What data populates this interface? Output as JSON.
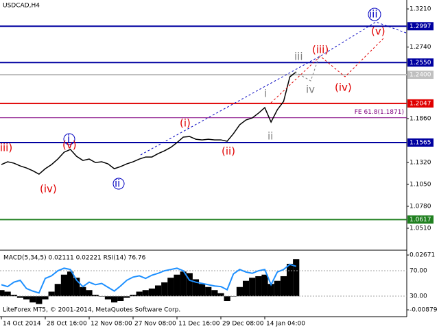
{
  "chart_data": [
    {
      "type": "line",
      "title": "USDCAD,H4",
      "footer": "LiteForex MT5, © 2001-2014, MetaQuotes Software Corp.",
      "categories": [
        "14 Oct 2014",
        null,
        null,
        null,
        null,
        null,
        null,
        "28 Oct 16:00",
        null,
        null,
        null,
        null,
        null,
        null,
        "12 Nov 08:00",
        null,
        null,
        null,
        null,
        null,
        null,
        "27 Nov 08:00",
        null,
        null,
        null,
        null,
        null,
        null,
        "11 Dec 16:00",
        null,
        null,
        null,
        null,
        null,
        null,
        "29 Dec 08:00",
        null,
        null,
        null,
        null,
        null,
        null,
        "14 Jan 04:00",
        null,
        null,
        null,
        null,
        null
      ],
      "values": [
        1.1294,
        1.1328,
        1.1311,
        1.1277,
        1.1252,
        1.1218,
        1.1176,
        1.1243,
        1.1294,
        1.1362,
        1.1446,
        1.148,
        1.1395,
        1.1345,
        1.1362,
        1.1319,
        1.1328,
        1.1303,
        1.1243,
        1.1269,
        1.1303,
        1.1328,
        1.1362,
        1.1387,
        1.1387,
        1.1429,
        1.1463,
        1.1505,
        1.1564,
        1.1632,
        1.164,
        1.1606,
        1.1598,
        1.1606,
        1.1598,
        1.1598,
        1.1581,
        1.1674,
        1.1784,
        1.1843,
        1.1868,
        1.1927,
        1.1995,
        1.1817,
        1.1969,
        1.2071,
        1.2374,
        1.2434
      ],
      "color": "#000000",
      "ylim": [
        1.024,
        1.332
      ],
      "yticks": [
        {
          "value": 1.321,
          "label": "1.3210"
        },
        {
          "value": 1.274,
          "label": "1.2740"
        },
        {
          "value": 1.186,
          "label": "1.1860"
        },
        {
          "value": 1.132,
          "label": "1.1320"
        },
        {
          "value": 1.105,
          "label": "1.1050"
        },
        {
          "value": 1.078,
          "label": "1.0780"
        },
        {
          "value": 1.051,
          "label": "1.0510"
        }
      ],
      "levels": [
        {
          "value": 1.2997,
          "label": "1.2997",
          "color": "#0000a0"
        },
        {
          "value": 1.255,
          "label": "1.2550",
          "color": "#0000a0"
        },
        {
          "value": 1.24,
          "label": "1.2400",
          "color": "#c0c0c0"
        },
        {
          "value": 1.2047,
          "label": "1.2047",
          "color": "#e00000"
        },
        {
          "value": 1.1565,
          "label": "1.1565",
          "color": "#0000a0"
        },
        {
          "value": 1.0617,
          "label": "1.0617",
          "color": "#208020"
        }
      ],
      "fe_level": {
        "value": 1.1871,
        "label": "FE 61.8(1.1871)",
        "color": "#800080"
      },
      "waves": [
        "(iii)",
        "(iv)",
        "i",
        "(v)",
        "ii",
        "(i)",
        "(ii)",
        "i",
        "ii",
        "iii",
        "(iii)",
        "iv",
        "(iv)",
        "iii",
        "(v)"
      ]
    },
    {
      "type": "bar",
      "title": "MACD(5,34,5) 0.02111 0.02221 RSI(14) 76.76",
      "values": [
        0.004,
        0.003,
        0.001,
        -0.001,
        -0.002,
        -0.004,
        -0.005,
        -0.002,
        0.003,
        0.008,
        0.014,
        0.016,
        0.012,
        0.006,
        0.004,
        0.001,
        0.0,
        -0.002,
        -0.004,
        -0.003,
        -0.001,
        0.001,
        0.003,
        0.004,
        0.005,
        0.007,
        0.009,
        0.012,
        0.014,
        0.016,
        0.015,
        0.011,
        0.008,
        0.006,
        0.004,
        0.002,
        -0.003,
        0.0,
        0.006,
        0.01,
        0.012,
        0.013,
        0.014,
        0.008,
        0.01,
        0.013,
        0.021,
        0.024
      ],
      "color": "#000000",
      "ylim": [
        -0.0132,
        0.0294
      ],
      "yticks": [
        0.02671,
        -0.00879
      ],
      "series": [
        {
          "name": "RSI(14)",
          "color": "#1e90ff",
          "axis": "y2",
          "values": [
            48,
            45,
            52,
            55,
            42,
            38,
            35,
            58,
            62,
            70,
            74,
            72,
            55,
            45,
            52,
            48,
            50,
            44,
            38,
            46,
            55,
            60,
            62,
            58,
            63,
            66,
            70,
            72,
            74,
            70,
            55,
            52,
            50,
            48,
            46,
            45,
            40,
            65,
            72,
            68,
            66,
            70,
            72,
            48,
            68,
            72,
            80,
            77
          ]
        }
      ],
      "y2lim": [
        -2.4,
        101.4
      ],
      "y2ticks": [
        {
          "value": 70,
          "label": "70.00"
        },
        {
          "value": 30,
          "label": "30.00"
        }
      ]
    }
  ]
}
